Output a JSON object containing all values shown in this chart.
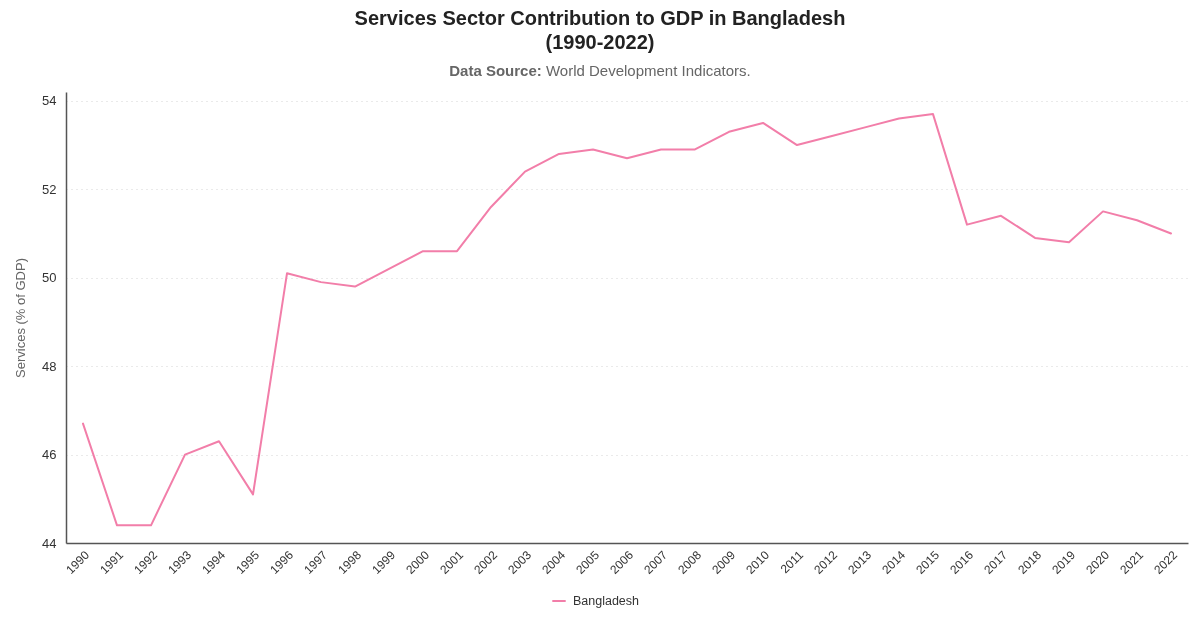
{
  "chart_data": {
    "type": "line",
    "title": "Services Sector Contribution to GDP in Bangladesh\n(1990-2022)",
    "subtitle": "Data Source: World Development Indicators.",
    "ylabel": "Services (% of GDP)",
    "categories": [
      "1990",
      "1991",
      "1992",
      "1993",
      "1994",
      "1995",
      "1996",
      "1997",
      "1998",
      "1999",
      "2000",
      "2001",
      "2002",
      "2003",
      "2004",
      "2005",
      "2006",
      "2007",
      "2008",
      "2009",
      "2010",
      "2011",
      "2012",
      "2013",
      "2014",
      "2015",
      "2016",
      "2017",
      "2018",
      "2019",
      "2020",
      "2021",
      "2022"
    ],
    "series": [
      {
        "name": "Bangladesh",
        "color": "#f27ea9",
        "values": [
          46.7,
          44.4,
          44.4,
          46.0,
          46.3,
          45.1,
          50.1,
          49.9,
          49.8,
          50.2,
          50.6,
          50.6,
          51.6,
          52.4,
          52.8,
          52.9,
          52.7,
          52.9,
          52.9,
          53.3,
          53.5,
          53.0,
          53.2,
          53.4,
          53.6,
          53.7,
          51.2,
          51.4,
          50.9,
          50.8,
          51.5,
          51.3,
          51.0
        ]
      }
    ],
    "ylim": [
      44,
      54.2
    ],
    "yticks": [
      44,
      46,
      48,
      50,
      52,
      54
    ],
    "grid": "y",
    "legend": "bottom"
  }
}
